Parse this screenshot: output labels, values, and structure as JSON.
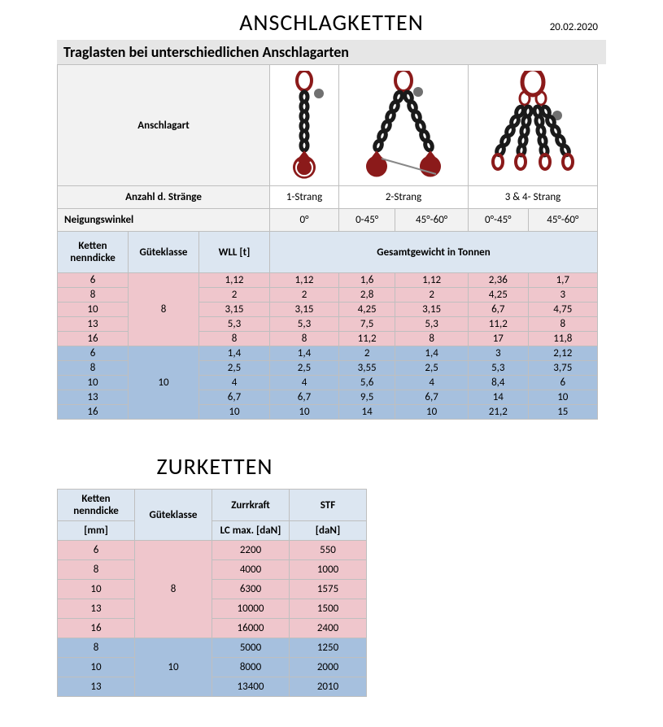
{
  "title1": "ANSCHLAGKETTEN",
  "date": "20.02.2020",
  "section_bar": "Traglasten bei unterschiedlichen Anschlagarten",
  "row_labels": {
    "anschlagart": "Anschlagart",
    "anzahl": "Anzahl d. Stränge",
    "neigung": "Neigungswinkel"
  },
  "strands": [
    "1-Strang",
    "2-Strang",
    "3 & 4- Strang"
  ],
  "angles": [
    "0°",
    "0-45°",
    "45°-60°",
    "0°-45°",
    "45°-60°"
  ],
  "colheaders": {
    "ketten": "Ketten nenndicke",
    "guete": "Güteklasse",
    "wll": "WLL [t]",
    "gesamt": "Gesamtgewicht in Tonnen"
  },
  "table1": {
    "group8": {
      "label": "8",
      "rows": [
        {
          "k": "6",
          "vals": [
            "1,12",
            "1,12",
            "1,6",
            "1,12",
            "2,36",
            "1,7"
          ]
        },
        {
          "k": "8",
          "vals": [
            "2",
            "2",
            "2,8",
            "2",
            "4,25",
            "3"
          ]
        },
        {
          "k": "10",
          "vals": [
            "3,15",
            "3,15",
            "4,25",
            "3,15",
            "6,7",
            "4,75"
          ]
        },
        {
          "k": "13",
          "vals": [
            "5,3",
            "5,3",
            "7,5",
            "5,3",
            "11,2",
            "8"
          ]
        },
        {
          "k": "16",
          "vals": [
            "8",
            "8",
            "11,2",
            "8",
            "17",
            "11,8"
          ]
        }
      ]
    },
    "group10": {
      "label": "10",
      "rows": [
        {
          "k": "6",
          "vals": [
            "1,4",
            "1,4",
            "2",
            "1,4",
            "3",
            "2,12"
          ]
        },
        {
          "k": "8",
          "vals": [
            "2,5",
            "2,5",
            "3,55",
            "2,5",
            "5,3",
            "3,75"
          ]
        },
        {
          "k": "10",
          "vals": [
            "4",
            "4",
            "5,6",
            "4",
            "8,4",
            "6"
          ]
        },
        {
          "k": "13",
          "vals": [
            "6,7",
            "6,7",
            "9,5",
            "6,7",
            "14",
            "10"
          ]
        },
        {
          "k": "16",
          "vals": [
            "10",
            "10",
            "14",
            "10",
            "21,2",
            "15"
          ]
        }
      ]
    }
  },
  "title2": "ZURKETTEN",
  "table2": {
    "headers": {
      "ketten": "Ketten nenndicke",
      "guete": "Güteklasse",
      "zurr": "Zurrkraft",
      "stf": "STF",
      "mm": "[mm]",
      "lc": "LC max. [daN]",
      "dan": "[daN]"
    },
    "group8": {
      "label": "8",
      "rows": [
        {
          "k": "6",
          "lc": "2200",
          "stf": "550"
        },
        {
          "k": "8",
          "lc": "4000",
          "stf": "1000"
        },
        {
          "k": "10",
          "lc": "6300",
          "stf": "1575"
        },
        {
          "k": "13",
          "lc": "10000",
          "stf": "1500"
        },
        {
          "k": "16",
          "lc": "16000",
          "stf": "2400"
        }
      ]
    },
    "group10": {
      "label": "10",
      "rows": [
        {
          "k": "8",
          "lc": "5000",
          "stf": "1250"
        },
        {
          "k": "10",
          "lc": "8000",
          "stf": "2000"
        },
        {
          "k": "13",
          "lc": "13400",
          "stf": "2010"
        }
      ]
    }
  },
  "colors": {
    "pink": "#efc6cc",
    "blue": "#a6c0de",
    "headerblue": "#dce6f1",
    "grey": "#f2f2f2",
    "chain_red": "#8b1a1a",
    "chain_black": "#1a1a1a"
  }
}
